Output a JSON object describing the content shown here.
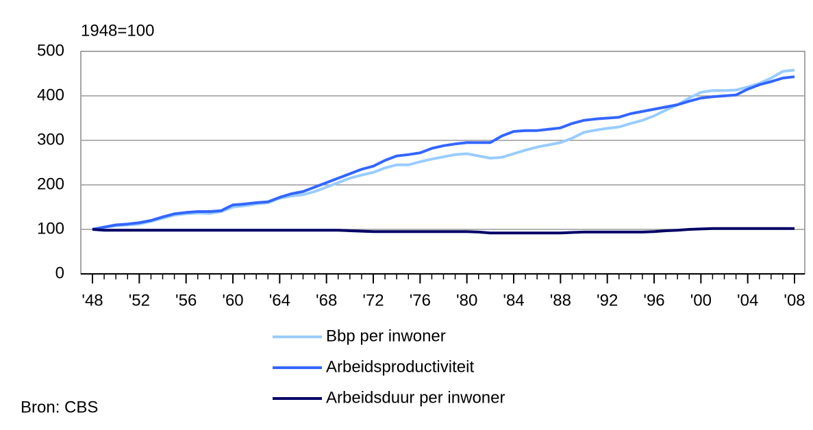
{
  "chart_data": {
    "type": "line",
    "unit_label": "1948=100",
    "source": "Bron: CBS",
    "x": [
      1948,
      1949,
      1950,
      1951,
      1952,
      1953,
      1954,
      1955,
      1956,
      1957,
      1958,
      1959,
      1960,
      1961,
      1962,
      1963,
      1964,
      1965,
      1966,
      1967,
      1968,
      1969,
      1970,
      1971,
      1972,
      1973,
      1974,
      1975,
      1976,
      1977,
      1978,
      1979,
      1980,
      1981,
      1982,
      1983,
      1984,
      1985,
      1986,
      1987,
      1988,
      1989,
      1990,
      1991,
      1992,
      1993,
      1994,
      1995,
      1996,
      1997,
      1998,
      1999,
      2000,
      2001,
      2002,
      2003,
      2004,
      2005,
      2006,
      2007,
      2008
    ],
    "series": [
      {
        "name": "Bbp per inwoner",
        "color": "#99ccff",
        "values": [
          100,
          105,
          108,
          110,
          112,
          118,
          125,
          132,
          135,
          137,
          136,
          140,
          150,
          153,
          157,
          160,
          170,
          175,
          178,
          185,
          195,
          205,
          215,
          222,
          228,
          238,
          245,
          245,
          252,
          258,
          263,
          268,
          270,
          265,
          260,
          262,
          270,
          278,
          285,
          290,
          295,
          305,
          318,
          323,
          327,
          330,
          338,
          345,
          355,
          368,
          380,
          395,
          408,
          412,
          412,
          413,
          420,
          428,
          440,
          455,
          458
        ]
      },
      {
        "name": "Arbeidsproductiviteit",
        "color": "#3366ff",
        "values": [
          100,
          105,
          110,
          112,
          115,
          120,
          128,
          135,
          138,
          140,
          140,
          142,
          155,
          157,
          160,
          162,
          172,
          180,
          185,
          195,
          205,
          215,
          225,
          235,
          242,
          255,
          265,
          268,
          272,
          282,
          288,
          292,
          295,
          295,
          295,
          310,
          320,
          322,
          322,
          325,
          328,
          338,
          345,
          348,
          350,
          352,
          360,
          365,
          370,
          375,
          380,
          388,
          395,
          398,
          400,
          402,
          415,
          425,
          432,
          440,
          443
        ]
      },
      {
        "name": "Arbeidsduur per inwoner",
        "color": "#000066",
        "values": [
          100,
          98,
          98,
          98,
          98,
          98,
          98,
          98,
          98,
          98,
          98,
          98,
          98,
          98,
          98,
          98,
          98,
          98,
          98,
          98,
          98,
          98,
          97,
          96,
          95,
          95,
          95,
          95,
          95,
          95,
          95,
          95,
          95,
          94,
          92,
          92,
          92,
          92,
          92,
          92,
          92,
          93,
          94,
          94,
          94,
          94,
          94,
          94,
          95,
          97,
          98,
          100,
          101,
          102,
          102,
          102,
          102,
          102,
          102,
          102,
          102
        ]
      }
    ],
    "xlim": [
      1948,
      2008
    ],
    "xticks": [
      {
        "value": 1948,
        "label": "'48"
      },
      {
        "value": 1952,
        "label": "'52"
      },
      {
        "value": 1956,
        "label": "'56"
      },
      {
        "value": 1960,
        "label": "'60"
      },
      {
        "value": 1964,
        "label": "'64"
      },
      {
        "value": 1968,
        "label": "'68"
      },
      {
        "value": 1972,
        "label": "'72"
      },
      {
        "value": 1976,
        "label": "'76"
      },
      {
        "value": 1980,
        "label": "'80"
      },
      {
        "value": 1984,
        "label": "'84"
      },
      {
        "value": 1988,
        "label": "'88"
      },
      {
        "value": 1992,
        "label": "'92"
      },
      {
        "value": 1996,
        "label": "'96"
      },
      {
        "value": 2000,
        "label": "'00"
      },
      {
        "value": 2004,
        "label": "'04"
      },
      {
        "value": 2008,
        "label": "'08"
      }
    ],
    "ylim": [
      0,
      500
    ],
    "yticks": [
      0,
      100,
      200,
      300,
      400,
      500
    ],
    "grid": true,
    "legend": "bottom"
  }
}
